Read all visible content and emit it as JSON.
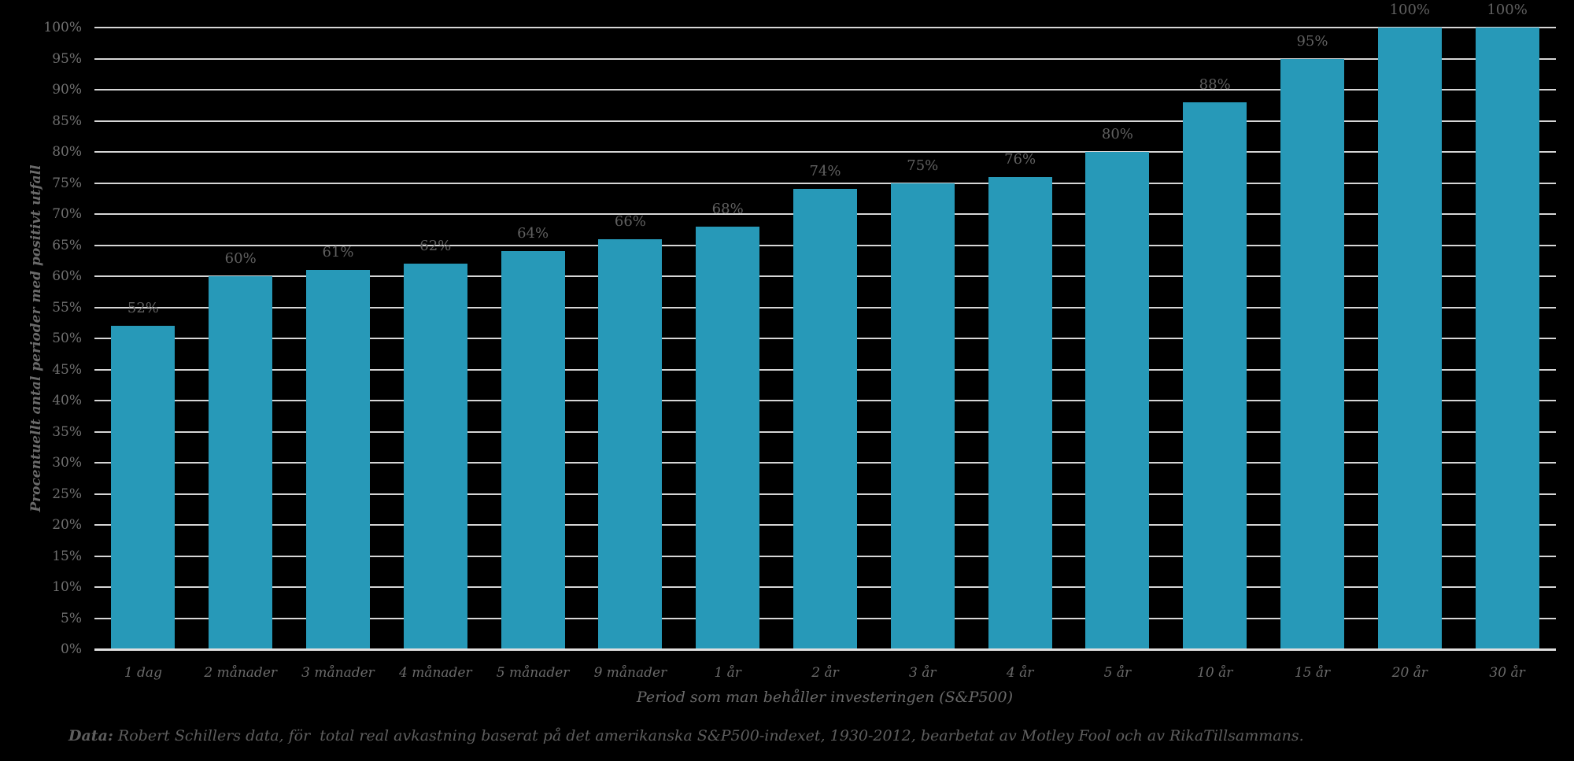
{
  "chart_data": {
    "type": "bar",
    "categories": [
      "1 dag",
      "2 månader",
      "3 månader",
      "4 månader",
      "5 månader",
      "9 månader",
      "1 år",
      "2 år",
      "3 år",
      "4 år",
      "5 år",
      "10 år",
      "15 år",
      "20 år",
      "30 år"
    ],
    "values": [
      52,
      60,
      61,
      62,
      64,
      66,
      68,
      74,
      75,
      76,
      80,
      88,
      95,
      100,
      100
    ],
    "data_labels": [
      "52%",
      "60%",
      "61%",
      "62%",
      "64%",
      "66%",
      "68%",
      "74%",
      "75%",
      "76%",
      "80%",
      "88%",
      "95%",
      "100%",
      "100%"
    ],
    "title": "",
    "xlabel": "Period som man behåller investeringen (S&P500)",
    "ylabel": "Procentuellt antal perioder med positivt utfall",
    "ylim": [
      0,
      100
    ],
    "ytick_step": 5,
    "ytick_labels": [
      "0%",
      "5%",
      "10%",
      "15%",
      "20%",
      "25%",
      "30%",
      "35%",
      "40%",
      "45%",
      "50%",
      "55%",
      "60%",
      "65%",
      "70%",
      "75%",
      "80%",
      "85%",
      "90%",
      "95%",
      "100%"
    ],
    "grid": true,
    "legend": false
  },
  "footer": {
    "prefix": "Data:",
    "text": " Robert Schillers data, för  total real avkastning baserat på det amerikanska S&P500-indexet, 1930-2012, bearbetat av Motley Fool och av RikaTillsammans."
  },
  "colors": {
    "background": "#000000",
    "bar": "#2799B8",
    "gridline": "#D6D6D6",
    "axis_line": "#E0E0E0",
    "tick_text": "#707070",
    "value_label_text": "#606060",
    "axis_title_text": "#6A6A6A",
    "footer_text": "#5E5E5E"
  }
}
